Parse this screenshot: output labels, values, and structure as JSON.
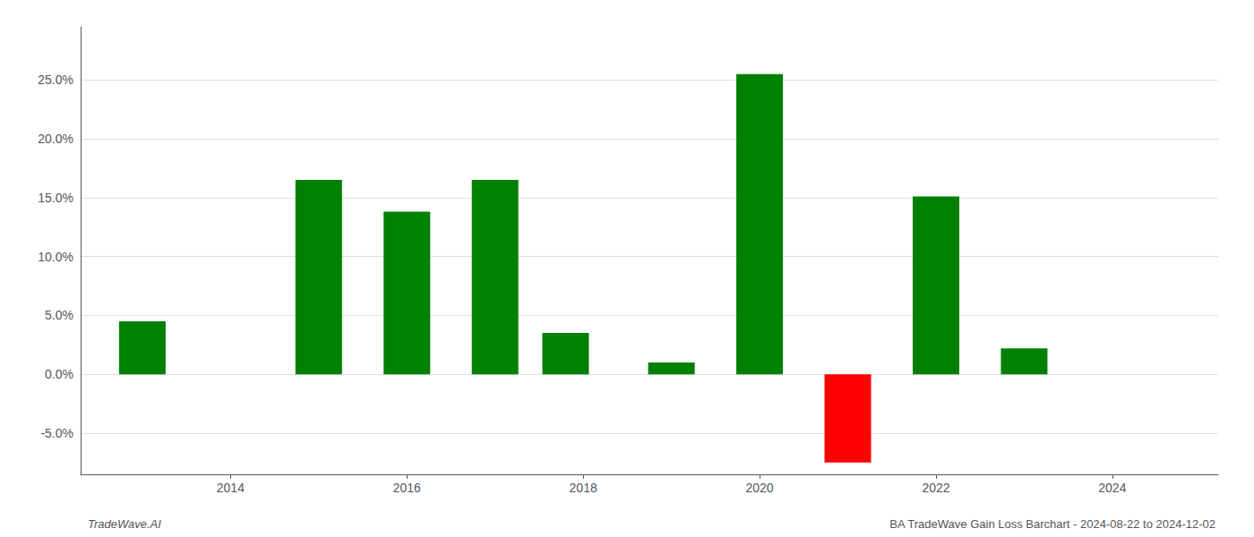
{
  "chart_data": {
    "type": "bar",
    "x": [
      2013,
      2015,
      2016,
      2017,
      2017.8,
      2019,
      2020,
      2021,
      2022,
      2023
    ],
    "values": [
      0.045,
      0.165,
      0.138,
      0.165,
      0.035,
      0.01,
      0.255,
      -0.075,
      0.151,
      0.022
    ],
    "colors": [
      "#008000",
      "#008000",
      "#008000",
      "#008000",
      "#008000",
      "#008000",
      "#008000",
      "#ff0000",
      "#008000",
      "#008000"
    ],
    "xlim": [
      2012.3,
      2025.2
    ],
    "ylim": [
      -0.085,
      0.295
    ],
    "xticks": [
      2014,
      2016,
      2018,
      2020,
      2022,
      2024
    ],
    "yticks": [
      {
        "value": -0.05,
        "label": "-5.0%"
      },
      {
        "value": 0.0,
        "label": "0.0%"
      },
      {
        "value": 0.05,
        "label": "5.0%"
      },
      {
        "value": 0.1,
        "label": "10.0%"
      },
      {
        "value": 0.15,
        "label": "15.0%"
      },
      {
        "value": 0.2,
        "label": "20.0%"
      },
      {
        "value": 0.25,
        "label": "25.0%"
      }
    ],
    "grid": true,
    "annotations": [
      "TradeWave.AI",
      "BA TradeWave Gain Loss Barchart - 2024-08-22 to 2024-12-02"
    ]
  }
}
